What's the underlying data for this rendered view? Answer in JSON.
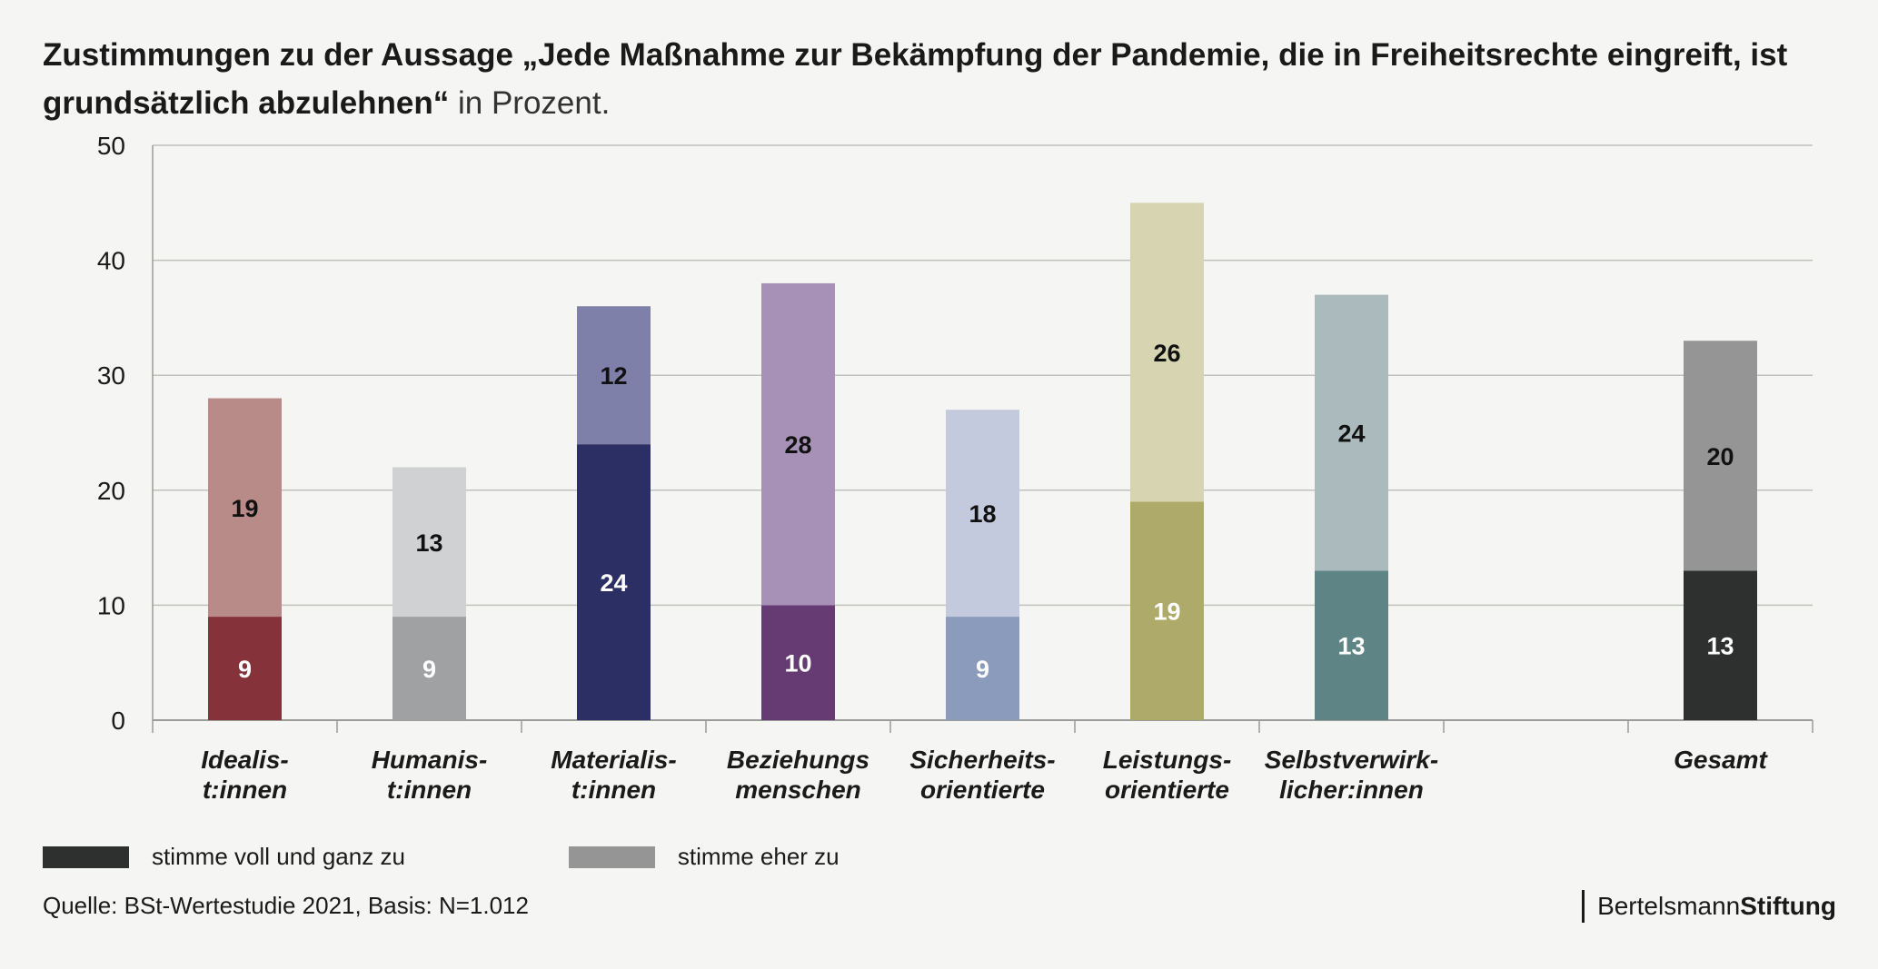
{
  "header": {
    "title_bold": "Zustimmungen zu der Aussage „Jede Maßnahme zur Bekämpfung der Pandemie, die in Freiheitsrechte eingreift, ist grundsätzlich abzulehnen“",
    "title_normal": " in Prozent."
  },
  "colors": {
    "grid": "#bfc1bc",
    "axis": "#9a9c98"
  },
  "chart_data": {
    "type": "bar",
    "stacked": true,
    "ylim": [
      0,
      50
    ],
    "yticks": [
      0,
      10,
      20,
      30,
      40,
      50
    ],
    "grid": true,
    "categories": [
      [
        "Idealis-",
        "t:innen"
      ],
      [
        "Humanis-",
        "t:innen"
      ],
      [
        "Materialis-",
        "t:innen"
      ],
      [
        "Beziehungs",
        "menschen"
      ],
      [
        "Sicherheits-",
        "orientierte"
      ],
      [
        "Leistungs-",
        "orientierte"
      ],
      [
        "Selbstverwirk-",
        "licher:innen"
      ],
      [
        "Gesamt"
      ]
    ],
    "slots": [
      0,
      1,
      2,
      3,
      4,
      5,
      6,
      8
    ],
    "series": [
      {
        "name": "stimme voll und ganz zu",
        "values": [
          9,
          9,
          24,
          10,
          9,
          19,
          13,
          13
        ],
        "colors": [
          "#86323a",
          "#a0a1a3",
          "#2c2f63",
          "#663a72",
          "#8a9bbb",
          "#aeaa69",
          "#5f8485",
          "#2d302e"
        ],
        "label_colors": [
          "#ffffff",
          "#ffffff",
          "#ffffff",
          "#ffffff",
          "#ffffff",
          "#ffffff",
          "#ffffff",
          "#ffffff"
        ]
      },
      {
        "name": "stimme eher zu",
        "values": [
          19,
          13,
          12,
          28,
          18,
          26,
          24,
          20
        ],
        "colors": [
          "#b98b88",
          "#d0d1d2",
          "#7f80a9",
          "#a891b7",
          "#c3cadd",
          "#d7d4b2",
          "#abbbbd",
          "#949594"
        ],
        "label_colors": [
          "#111111",
          "#111111",
          "#111111",
          "#111111",
          "#111111",
          "#111111",
          "#111111",
          "#111111"
        ]
      }
    ]
  },
  "legend": {
    "items": [
      {
        "label": "stimme voll und ganz zu",
        "color": "#2d302e"
      },
      {
        "label": "stimme eher zu",
        "color": "#949594"
      }
    ]
  },
  "footer": {
    "source": "Quelle: BSt-Wertestudie 2021, Basis: N=1.012",
    "logo_regular": "Bertelsmann",
    "logo_bold": "Stiftung"
  }
}
